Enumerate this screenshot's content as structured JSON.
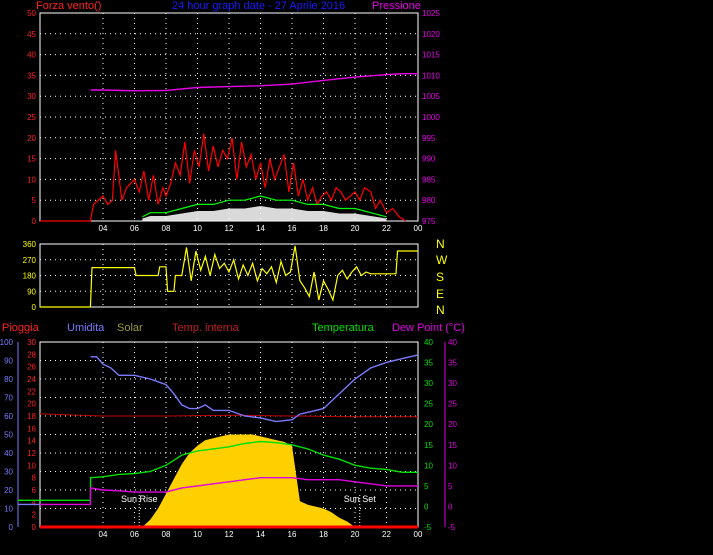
{
  "header": {
    "wind_label": "Forza vento()",
    "title": "24 hour graph date - 27 Aprile 2016",
    "pressure_label": "Pressione"
  },
  "bottom_labels": {
    "rain": "Pioggia",
    "humidity": "Umidita",
    "solar": "Solar",
    "temp_in": "Temp. interna",
    "temperature": "Temperatura",
    "dewpoint": "Dew Point (°C)"
  },
  "compass": [
    "N",
    "W",
    "S",
    "E",
    "N"
  ],
  "sun": {
    "rise": "Sun Rise",
    "set": "Sun Set"
  },
  "colors": {
    "wind_gust": "#ff0000",
    "wind_avg": "#00ff00",
    "wind_fill": "#ffffff",
    "pressure": "#e800e8",
    "direction": "#ffff00",
    "humidity": "#7a7aff",
    "solar": "#ffd000",
    "temp_in": "#c00000",
    "temperature": "#00e000",
    "dewpoint": "#e000e0",
    "rain": "#ff0000",
    "title": "#1a1aff",
    "grid": "#ffffff"
  },
  "chart_data": [
    {
      "type": "line",
      "name": "wind-pressure",
      "x_ticks": [
        "04",
        "06",
        "08",
        "10",
        "12",
        "14",
        "16",
        "18",
        "20",
        "22",
        "00"
      ],
      "x_range_hours": [
        0,
        24
      ],
      "y_left": {
        "label": "Forza vento()",
        "ticks": [
          0,
          5,
          10,
          15,
          20,
          25,
          30,
          35,
          40,
          45,
          50
        ],
        "range": [
          0,
          50
        ]
      },
      "y_right": {
        "label": "Pressione",
        "ticks": [
          975,
          980,
          985,
          990,
          995,
          1000,
          1005,
          1010,
          1015,
          1020,
          1025
        ],
        "range": [
          975,
          1025
        ]
      },
      "series": [
        {
          "name": "Pressione",
          "axis": "right",
          "x": [
            0,
            3.2,
            3.21,
            4,
            6,
            8,
            10,
            12,
            14,
            16,
            18,
            20,
            22,
            23,
            24
          ],
          "y": [
            null,
            null,
            1006.5,
            1006.5,
            1006.3,
            1006.4,
            1007.1,
            1007.3,
            1007.5,
            1007.9,
            1008.8,
            1009.6,
            1010.2,
            1010.4,
            1010.4
          ]
        },
        {
          "x_note": ""
        }
      ],
      "wind_gust": {
        "x": [
          0,
          2,
          3.2,
          3.4,
          4,
          4.3,
          4.6,
          4.8,
          5.2,
          5.5,
          6,
          6.3,
          6.6,
          6.9,
          7.2,
          7.5,
          7.8,
          8.0,
          8.3,
          8.6,
          8.9,
          9.2,
          9.5,
          9.8,
          10.1,
          10.4,
          10.7,
          11.0,
          11.3,
          11.6,
          11.9,
          12.2,
          12.5,
          12.8,
          13.1,
          13.4,
          13.7,
          14.0,
          14.3,
          14.6,
          14.9,
          15.2,
          15.5,
          15.8,
          16.1,
          16.4,
          16.7,
          17.0,
          17.3,
          17.6,
          17.9,
          18.2,
          18.5,
          18.8,
          19.1,
          19.4,
          19.7,
          20.0,
          20.3,
          20.6,
          21.0,
          21.3,
          21.6,
          22.0,
          22.4,
          22.8,
          23.2
        ],
        "y": [
          0,
          0,
          0,
          4,
          6,
          4,
          5,
          17,
          5,
          8,
          10,
          7,
          12,
          5,
          11,
          4,
          8,
          6,
          9,
          14,
          11,
          19,
          9,
          17,
          13,
          21,
          12,
          18,
          13,
          17,
          15,
          20,
          10,
          19,
          13,
          16,
          10,
          14,
          8,
          15,
          10,
          13,
          16,
          7,
          14,
          6,
          10,
          5,
          8,
          4,
          6,
          7,
          5,
          8,
          7,
          5,
          6,
          7,
          5,
          8,
          7,
          3,
          5,
          2,
          3,
          1,
          0
        ]
      },
      "wind_avg": {
        "x": [
          6.5,
          7,
          8,
          9,
          10,
          11,
          12,
          13,
          14,
          15,
          16,
          17,
          18,
          19,
          20,
          21,
          22
        ],
        "y": [
          1,
          2,
          2,
          3,
          4,
          4,
          5,
          5,
          6,
          5,
          5,
          4,
          4,
          3,
          3,
          2,
          1
        ]
      }
    },
    {
      "type": "line",
      "name": "wind-direction",
      "y_ticks": [
        0,
        90,
        180,
        270,
        360
      ],
      "y_range": [
        0,
        360
      ],
      "compass": [
        "N",
        "W",
        "S",
        "E",
        "N"
      ],
      "x": [
        0,
        3.0,
        3.2,
        3.3,
        6.0,
        6.1,
        7.5,
        7.6,
        8.0,
        8.1,
        8.5,
        8.6,
        9.0,
        9.3,
        9.6,
        9.9,
        10.2,
        10.5,
        10.8,
        11.1,
        11.4,
        11.7,
        12.0,
        12.3,
        12.6,
        12.9,
        13.2,
        13.5,
        13.8,
        14.1,
        14.4,
        14.7,
        15.0,
        15.3,
        15.6,
        15.9,
        16.2,
        16.5,
        16.8,
        17.1,
        17.4,
        17.7,
        18.0,
        18.3,
        18.6,
        18.9,
        19.2,
        19.5,
        19.8,
        20.1,
        20.4,
        20.7,
        21.0,
        22.0,
        22.6,
        22.7,
        24.0
      ],
      "y": [
        0,
        0,
        0,
        225,
        225,
        180,
        180,
        230,
        230,
        90,
        90,
        180,
        180,
        340,
        150,
        320,
        210,
        290,
        180,
        300,
        220,
        250,
        200,
        270,
        160,
        240,
        180,
        250,
        150,
        220,
        190,
        230,
        140,
        260,
        180,
        200,
        350,
        150,
        110,
        60,
        200,
        40,
        150,
        100,
        40,
        180,
        210,
        160,
        200,
        230,
        180,
        200,
        190,
        190,
        190,
        320,
        320
      ]
    },
    {
      "type": "line",
      "name": "temperature-humidity-solar",
      "y_axes": {
        "humidity": {
          "label": "Umidita",
          "ticks": [
            0,
            10,
            20,
            30,
            40,
            50,
            60,
            70,
            80,
            90,
            100
          ],
          "range": [
            0,
            100
          ]
        },
        "rain": {
          "label": "Pioggia",
          "ticks": [
            0,
            2,
            4,
            6,
            8,
            10,
            12,
            14,
            16,
            18,
            20,
            22,
            24,
            26,
            28,
            30
          ],
          "range": [
            0,
            30
          ]
        },
        "temperature": {
          "label": "Temperatura",
          "ticks": [
            -5,
            0,
            5,
            10,
            15,
            20,
            25,
            30,
            35,
            40
          ],
          "range": [
            -5,
            40
          ]
        },
        "dewpoint": {
          "label": "Dew Point (°C)",
          "ticks": [
            -5,
            0,
            5,
            10,
            15,
            20,
            25,
            30,
            35,
            40
          ],
          "range": [
            -5,
            40
          ]
        }
      },
      "sun_rise": "Sun Rise",
      "sun_set": "Sun Set",
      "sun_rise_hour": 6.3,
      "sun_set_hour": 20.3,
      "humidity": {
        "x": [
          0,
          3.2,
          3.21,
          3.6,
          4,
          4.5,
          5,
          6,
          7,
          8,
          8.5,
          9,
          9.5,
          10,
          10.5,
          11,
          12,
          13,
          14,
          15,
          16,
          16.5,
          17,
          18,
          19,
          20,
          21,
          22,
          23,
          24
        ],
        "y": [
          null,
          null,
          92,
          92,
          88,
          86,
          82,
          82,
          80,
          77,
          72,
          66,
          64,
          64,
          66,
          63,
          63,
          60,
          59,
          57,
          58,
          61,
          62,
          64,
          72,
          80,
          86,
          89,
          91,
          93
        ]
      },
      "temp_in": {
        "x": [
          0,
          4,
          8,
          12,
          16,
          20,
          24
        ],
        "y": [
          22.5,
          22.0,
          22.0,
          22.2,
          22.0,
          21.8,
          21.8
        ]
      },
      "temperature": {
        "x": [
          0,
          3.2,
          3.21,
          4,
          5,
          6,
          7,
          8,
          9,
          10,
          11,
          12,
          13,
          14,
          15,
          16,
          17,
          18,
          19,
          20,
          21,
          22,
          23,
          24
        ],
        "y": [
          1.5,
          1.5,
          7.0,
          7.2,
          7.8,
          8.0,
          8.5,
          10.0,
          12.5,
          13.5,
          14.0,
          14.5,
          15.3,
          15.8,
          15.5,
          15.0,
          14.0,
          12.5,
          11.5,
          10.0,
          9.3,
          9.0,
          8.3,
          8.3
        ]
      },
      "dewpoint": {
        "x": [
          0,
          3.2,
          3.21,
          4,
          5,
          6,
          7,
          8,
          9,
          10,
          11,
          12,
          13,
          14,
          15,
          16,
          17,
          18,
          19,
          20,
          21,
          22,
          23,
          24
        ],
        "y": [
          0.5,
          0.5,
          4.5,
          4.0,
          3.8,
          3.5,
          3.5,
          3.5,
          4.5,
          5.0,
          5.5,
          6.0,
          6.5,
          7.0,
          7.0,
          7.0,
          6.5,
          6.5,
          6.5,
          6.0,
          5.5,
          5.0,
          5.0,
          5.0
        ]
      },
      "solar": {
        "x": [
          6.5,
          7.0,
          7.5,
          8.0,
          8.5,
          9.0,
          9.5,
          10.0,
          10.5,
          11.0,
          11.5,
          12.0,
          12.5,
          13.0,
          13.5,
          14.0,
          14.5,
          15.0,
          15.5,
          16.0,
          16.5,
          17.0,
          17.5,
          18.0,
          18.5,
          19.0,
          19.5,
          20.0
        ],
        "y": [
          0,
          4,
          10,
          18,
          26,
          34,
          40,
          44,
          47,
          48,
          49,
          50,
          50,
          50,
          50,
          49,
          48,
          47,
          46,
          44,
          14,
          12,
          11,
          10,
          8,
          5,
          3,
          0
        ]
      },
      "rain": {
        "x": [
          0,
          24
        ],
        "y": [
          0,
          0
        ]
      }
    }
  ]
}
